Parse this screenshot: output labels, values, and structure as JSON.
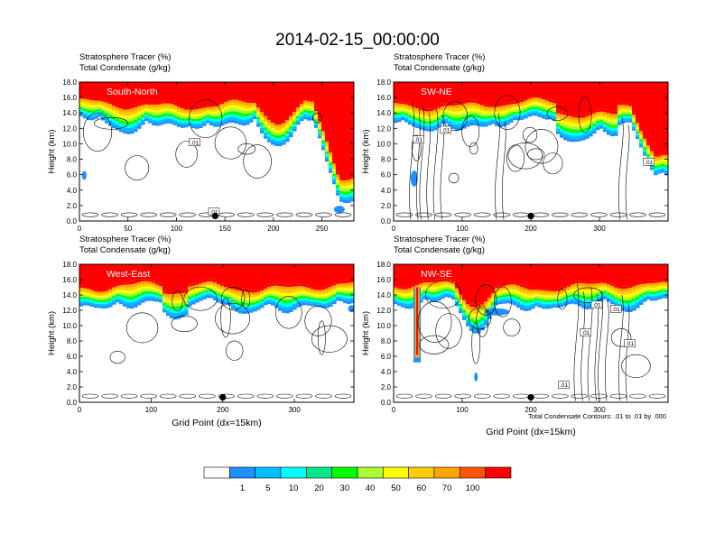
{
  "chart_data": {
    "type": "heatmap",
    "title": "2014-02-15_00:00:00",
    "contour_note": "Total Condensate Contours: .01 to .01 by .000",
    "variables": [
      {
        "name": "Stratosphere Tracer",
        "units": "(%)"
      },
      {
        "name": "Total Condensate",
        "units": "(g/kg)"
      }
    ],
    "ylabel": "Height (km)",
    "xlabel": "Grid Point (dx=15km)",
    "yticks": [
      "0.0",
      "2.0",
      "4.0",
      "6.0",
      "8.0",
      "10.0",
      "12.0",
      "14.0",
      "16.0",
      "18.0"
    ],
    "ylim": [
      0,
      18
    ],
    "colorbar": {
      "levels": [
        "1",
        "5",
        "10",
        "20",
        "30",
        "40",
        "50",
        "60",
        "70",
        "100"
      ],
      "colors": [
        "#ffffff",
        "#1e90ff",
        "#00bfff",
        "#00ffff",
        "#00e88a",
        "#00ff00",
        "#aaff33",
        "#ffff00",
        "#ffcc00",
        "#ffa500",
        "#ff5500",
        "#ff0000"
      ]
    },
    "panels": [
      {
        "label": "South-North",
        "xlim": [
          0,
          283
        ],
        "xticks": [
          "0",
          "50",
          "100",
          "150",
          "200",
          "250"
        ],
        "tick_values": [
          0,
          50,
          100,
          150,
          200,
          250
        ],
        "marker_x": 140,
        "contour_label": ".01",
        "show_xlabel": false
      },
      {
        "label": "SW-NE",
        "xlim": [
          0,
          400
        ],
        "xticks": [
          "0",
          "100",
          "200",
          "300"
        ],
        "tick_values": [
          0,
          100,
          200,
          300
        ],
        "marker_x": 200,
        "contour_label": ".01",
        "show_xlabel": false
      },
      {
        "label": "West-East",
        "xlim": [
          0,
          383
        ],
        "xticks": [
          "0",
          "100",
          "200",
          "300"
        ],
        "tick_values": [
          0,
          100,
          200,
          300
        ],
        "marker_x": 200,
        "contour_label": "",
        "show_xlabel": true
      },
      {
        "label": "NW-SE",
        "xlim": [
          0,
          400
        ],
        "xticks": [
          "0",
          "100",
          "200",
          "300"
        ],
        "tick_values": [
          0,
          100,
          200,
          300
        ],
        "marker_x": 200,
        "contour_label": ".01",
        "show_xlabel": true
      }
    ]
  }
}
